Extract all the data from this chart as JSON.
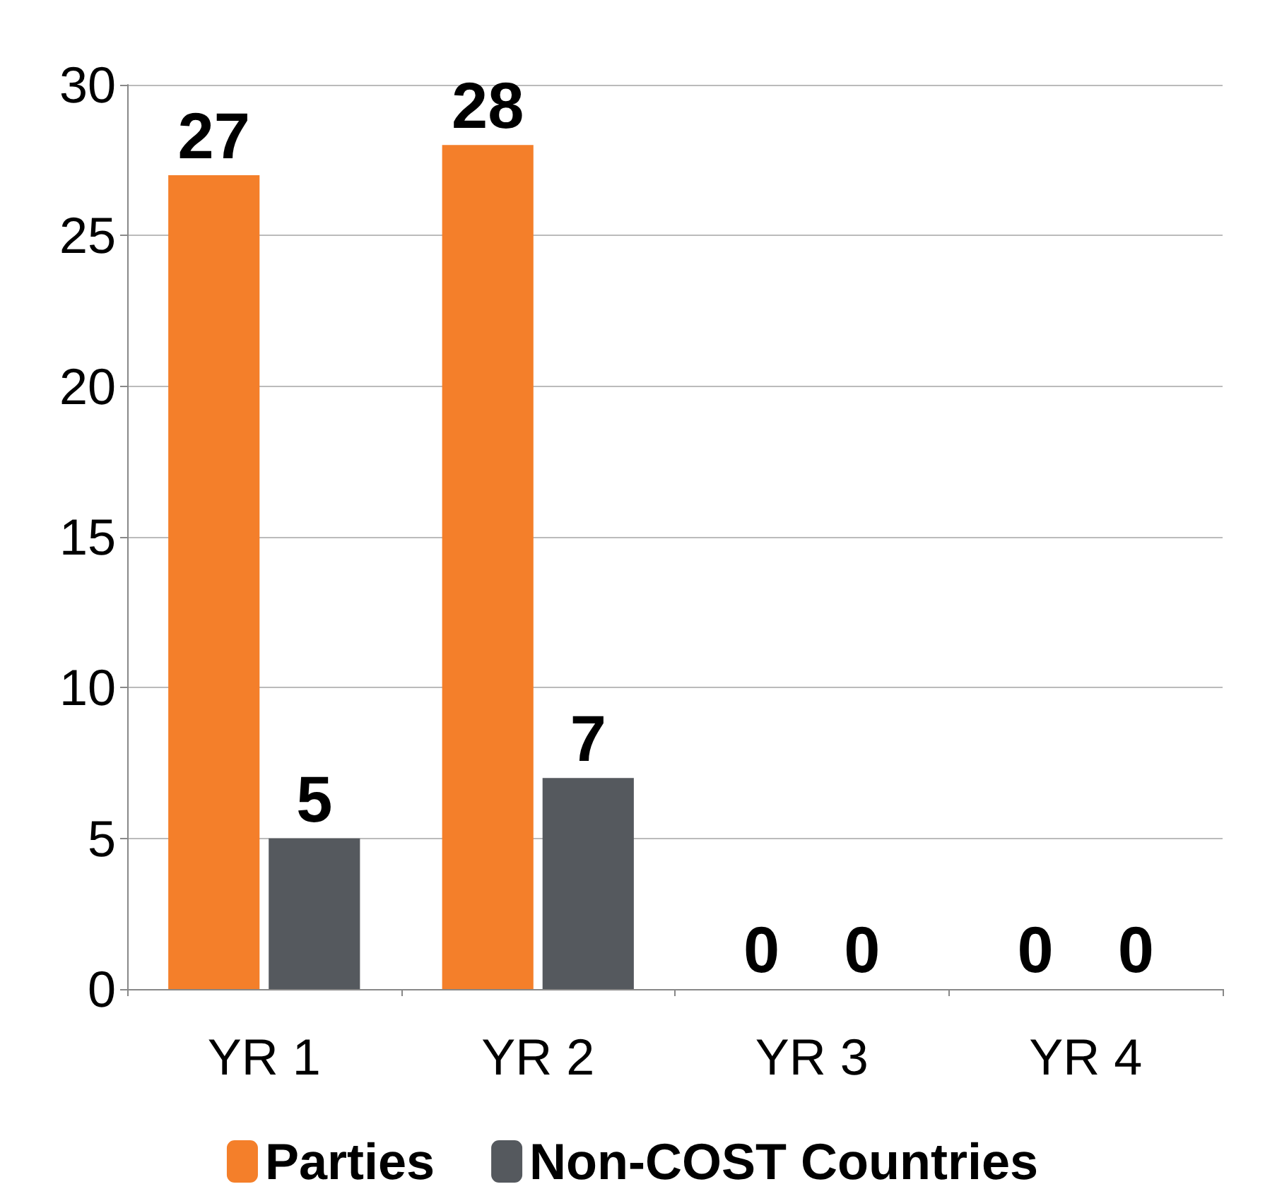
{
  "chart_data": {
    "type": "bar",
    "categories": [
      "YR 1",
      "YR 2",
      "YR 3",
      "YR 4"
    ],
    "series": [
      {
        "name": "Parties",
        "color": "#f47f2a",
        "values": [
          27,
          28,
          0,
          0
        ]
      },
      {
        "name": "Non-COST Countries",
        "color": "#55595e",
        "values": [
          5,
          7,
          0,
          0
        ]
      }
    ],
    "ylim": [
      0,
      30
    ],
    "yticks": [
      0,
      5,
      10,
      15,
      20,
      25,
      30
    ],
    "grid": "y",
    "legend": "bottom",
    "data_labels": true
  }
}
